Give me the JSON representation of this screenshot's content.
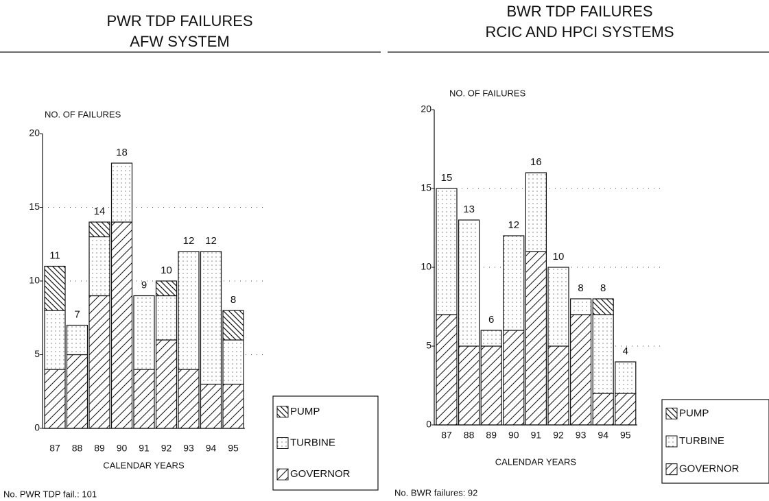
{
  "chart_data": [
    {
      "type": "bar",
      "stacked": true,
      "title": [
        "PWR TDP FAILURES",
        "AFW SYSTEM"
      ],
      "ylabel": "NO. OF FAILURES",
      "xlabel": "CALENDAR YEARS",
      "categories": [
        "87",
        "88",
        "89",
        "90",
        "91",
        "92",
        "93",
        "94",
        "95"
      ],
      "series": [
        {
          "name": "GOVERNOR",
          "pattern": "slash",
          "values": [
            4,
            5,
            9,
            14,
            4,
            6,
            4,
            3,
            3
          ]
        },
        {
          "name": "TURBINE",
          "pattern": "dots",
          "values": [
            4,
            2,
            4,
            4,
            5,
            3,
            8,
            9,
            3
          ]
        },
        {
          "name": "PUMP",
          "pattern": "backslash",
          "values": [
            3,
            0,
            1,
            0,
            0,
            1,
            0,
            0,
            2
          ]
        }
      ],
      "totals": [
        11,
        7,
        14,
        18,
        9,
        10,
        12,
        12,
        8
      ],
      "ylim": [
        0,
        20
      ],
      "yticks": [
        0,
        5,
        10,
        15,
        20
      ],
      "grid": true,
      "note": "No. PWR TDP fail.: 101"
    },
    {
      "type": "bar",
      "stacked": true,
      "title": [
        "BWR TDP FAILURES",
        "RCIC AND HPCI SYSTEMS"
      ],
      "ylabel": "NO. OF FAILURES",
      "xlabel": "CALENDAR YEARS",
      "categories": [
        "87",
        "88",
        "89",
        "90",
        "91",
        "92",
        "93",
        "94",
        "95"
      ],
      "series": [
        {
          "name": "GOVERNOR",
          "pattern": "slash",
          "values": [
            7,
            5,
            5,
            6,
            11,
            5,
            7,
            2,
            2
          ]
        },
        {
          "name": "TURBINE",
          "pattern": "dots",
          "values": [
            8,
            8,
            1,
            6,
            5,
            5,
            1,
            5,
            2
          ]
        },
        {
          "name": "PUMP",
          "pattern": "backslash",
          "values": [
            0,
            0,
            0,
            0,
            0,
            0,
            0,
            1,
            0
          ]
        }
      ],
      "totals": [
        15,
        13,
        6,
        12,
        16,
        10,
        8,
        8,
        4
      ],
      "ylim": [
        0,
        20
      ],
      "yticks": [
        0,
        5,
        10,
        15,
        20
      ],
      "grid": true,
      "note": "No. BWR failures: 92"
    }
  ]
}
